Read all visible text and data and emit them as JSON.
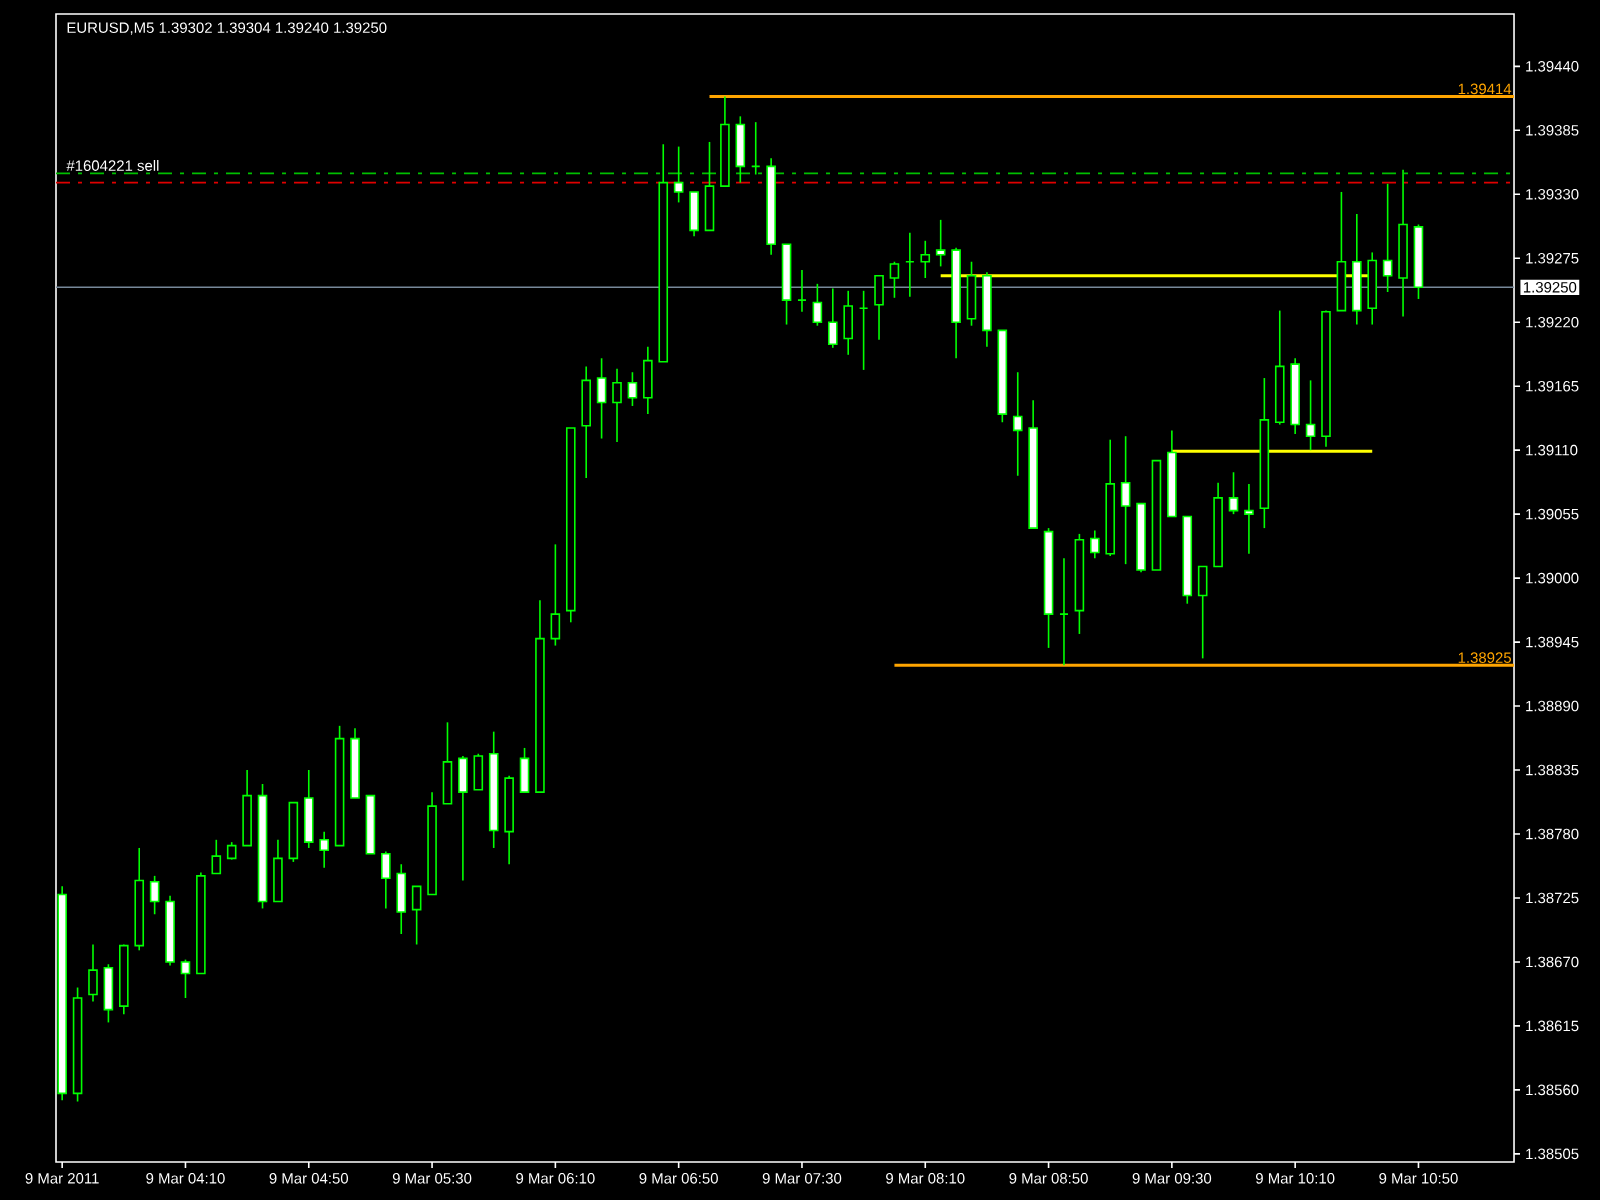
{
  "chart_data": {
    "type": "candlestick",
    "title": "EURUSD,M5  1.39302 1.39304 1.39240 1.39250",
    "x": [
      "2011-03-09T03:30",
      "2011-03-09T03:35",
      "2011-03-09T03:40",
      "2011-03-09T03:45",
      "2011-03-09T03:50",
      "2011-03-09T03:55",
      "2011-03-09T04:00",
      "2011-03-09T04:05",
      "2011-03-09T04:10",
      "2011-03-09T04:15",
      "2011-03-09T04:20",
      "2011-03-09T04:25",
      "2011-03-09T04:30",
      "2011-03-09T04:35",
      "2011-03-09T04:40",
      "2011-03-09T04:45",
      "2011-03-09T04:50",
      "2011-03-09T04:55",
      "2011-03-09T05:00",
      "2011-03-09T05:05",
      "2011-03-09T05:10",
      "2011-03-09T05:15",
      "2011-03-09T05:20",
      "2011-03-09T05:25",
      "2011-03-09T05:30",
      "2011-03-09T05:35",
      "2011-03-09T05:40",
      "2011-03-09T05:45",
      "2011-03-09T05:50",
      "2011-03-09T05:55",
      "2011-03-09T06:00",
      "2011-03-09T06:05",
      "2011-03-09T06:10",
      "2011-03-09T06:15",
      "2011-03-09T06:20",
      "2011-03-09T06:25",
      "2011-03-09T06:30",
      "2011-03-09T06:35",
      "2011-03-09T06:40",
      "2011-03-09T06:45",
      "2011-03-09T06:50",
      "2011-03-09T06:55",
      "2011-03-09T07:00",
      "2011-03-09T07:05",
      "2011-03-09T07:10",
      "2011-03-09T07:15",
      "2011-03-09T07:20",
      "2011-03-09T07:25",
      "2011-03-09T07:30",
      "2011-03-09T07:35",
      "2011-03-09T07:40",
      "2011-03-09T07:45",
      "2011-03-09T07:50",
      "2011-03-09T07:55",
      "2011-03-09T08:00",
      "2011-03-09T08:05",
      "2011-03-09T08:10",
      "2011-03-09T08:15",
      "2011-03-09T08:20",
      "2011-03-09T08:25",
      "2011-03-09T08:30",
      "2011-03-09T08:35",
      "2011-03-09T08:40",
      "2011-03-09T08:45",
      "2011-03-09T08:50",
      "2011-03-09T08:55",
      "2011-03-09T09:00",
      "2011-03-09T09:05",
      "2011-03-09T09:10",
      "2011-03-09T09:15",
      "2011-03-09T09:20",
      "2011-03-09T09:25",
      "2011-03-09T09:30",
      "2011-03-09T09:35",
      "2011-03-09T09:40",
      "2011-03-09T09:45",
      "2011-03-09T09:50",
      "2011-03-09T09:55",
      "2011-03-09T10:00",
      "2011-03-09T10:05",
      "2011-03-09T10:10",
      "2011-03-09T10:15",
      "2011-03-09T10:20",
      "2011-03-09T10:25",
      "2011-03-09T10:30",
      "2011-03-09T10:35",
      "2011-03-09T10:40",
      "2011-03-09T10:45",
      "2011-03-09T10:50"
    ],
    "ohlc": [
      [
        1.38728,
        1.38735,
        1.38551,
        1.38557
      ],
      [
        1.38557,
        1.38648,
        1.3855,
        1.38639
      ],
      [
        1.38642,
        1.38685,
        1.38636,
        1.38663
      ],
      [
        1.38665,
        1.38668,
        1.38618,
        1.38629
      ],
      [
        1.38632,
        1.38685,
        1.38625,
        1.38684
      ],
      [
        1.38684,
        1.38768,
        1.3868,
        1.3874
      ],
      [
        1.38739,
        1.38744,
        1.38711,
        1.38722
      ],
      [
        1.38722,
        1.38727,
        1.38667,
        1.3867
      ],
      [
        1.3867,
        1.38672,
        1.38639,
        1.3866
      ],
      [
        1.3866,
        1.38747,
        1.3866,
        1.38744
      ],
      [
        1.38746,
        1.38775,
        1.38746,
        1.38761
      ],
      [
        1.38759,
        1.38773,
        1.38758,
        1.3877
      ],
      [
        1.3877,
        1.38835,
        1.3877,
        1.38813
      ],
      [
        1.38813,
        1.38823,
        1.38716,
        1.38722
      ],
      [
        1.38722,
        1.38775,
        1.38722,
        1.38759
      ],
      [
        1.38759,
        1.38807,
        1.38756,
        1.38807
      ],
      [
        1.38811,
        1.38835,
        1.38768,
        1.38773
      ],
      [
        1.38775,
        1.38782,
        1.38751,
        1.38766
      ],
      [
        1.3877,
        1.38873,
        1.3877,
        1.38862
      ],
      [
        1.38862,
        1.38871,
        1.38811,
        1.38811
      ],
      [
        1.38813,
        1.38813,
        1.38763,
        1.38763
      ],
      [
        1.38763,
        1.38765,
        1.38716,
        1.38742
      ],
      [
        1.38746,
        1.38754,
        1.38694,
        1.38713
      ],
      [
        1.38715,
        1.38735,
        1.38685,
        1.38735
      ],
      [
        1.38728,
        1.38816,
        1.38728,
        1.38804
      ],
      [
        1.38806,
        1.38876,
        1.38806,
        1.38842
      ],
      [
        1.38845,
        1.38847,
        1.3874,
        1.38816
      ],
      [
        1.38818,
        1.38849,
        1.38818,
        1.38847
      ],
      [
        1.38849,
        1.38868,
        1.38768,
        1.38783
      ],
      [
        1.38782,
        1.3883,
        1.38754,
        1.38828
      ],
      [
        1.38845,
        1.38854,
        1.38816,
        1.38816
      ],
      [
        1.38816,
        1.38981,
        1.38816,
        1.38948
      ],
      [
        1.38948,
        1.39029,
        1.38942,
        1.38969
      ],
      [
        1.38972,
        1.39129,
        1.38962,
        1.39129
      ],
      [
        1.39131,
        1.39182,
        1.39086,
        1.3917
      ],
      [
        1.39172,
        1.39189,
        1.3912,
        1.39151
      ],
      [
        1.39151,
        1.3918,
        1.39117,
        1.39168
      ],
      [
        1.39168,
        1.39177,
        1.39148,
        1.39155
      ],
      [
        1.39155,
        1.39199,
        1.39141,
        1.39187
      ],
      [
        1.39186,
        1.39373,
        1.39186,
        1.3934
      ],
      [
        1.3934,
        1.39371,
        1.39323,
        1.39332
      ],
      [
        1.39332,
        1.39332,
        1.39294,
        1.39299
      ],
      [
        1.39299,
        1.39375,
        1.39299,
        1.39337
      ],
      [
        1.39337,
        1.39414,
        1.39337,
        1.3939
      ],
      [
        1.3939,
        1.39397,
        1.3934,
        1.39354
      ],
      [
        1.39354,
        1.39392,
        1.39347,
        1.39354
      ],
      [
        1.39354,
        1.39361,
        1.39278,
        1.39287
      ],
      [
        1.39287,
        1.39287,
        1.39218,
        1.39239
      ],
      [
        1.39239,
        1.39265,
        1.39229,
        1.39239
      ],
      [
        1.39237,
        1.39253,
        1.39217,
        1.3922
      ],
      [
        1.3922,
        1.39249,
        1.39198,
        1.39201
      ],
      [
        1.39206,
        1.39247,
        1.39192,
        1.39234
      ],
      [
        1.39232,
        1.39247,
        1.39179,
        1.39232
      ],
      [
        1.39235,
        1.3926,
        1.39205,
        1.3926
      ],
      [
        1.39258,
        1.39272,
        1.39241,
        1.3927
      ],
      [
        1.39272,
        1.39297,
        1.39242,
        1.39272
      ],
      [
        1.39272,
        1.3929,
        1.39258,
        1.39278
      ],
      [
        1.39282,
        1.39308,
        1.39268,
        1.39278
      ],
      [
        1.39282,
        1.39284,
        1.39189,
        1.3922
      ],
      [
        1.39223,
        1.39272,
        1.39217,
        1.3926
      ],
      [
        1.3926,
        1.39263,
        1.39199,
        1.39213
      ],
      [
        1.39213,
        1.39213,
        1.39134,
        1.39141
      ],
      [
        1.39139,
        1.39177,
        1.39088,
        1.39127
      ],
      [
        1.39129,
        1.39153,
        1.39043,
        1.39043
      ],
      [
        1.3904,
        1.39043,
        1.3894,
        1.38969
      ],
      [
        1.38969,
        1.39017,
        1.38925,
        1.38969
      ],
      [
        1.38972,
        1.39038,
        1.38952,
        1.39033
      ],
      [
        1.39034,
        1.39041,
        1.39017,
        1.39022
      ],
      [
        1.39021,
        1.39119,
        1.39019,
        1.39081
      ],
      [
        1.39082,
        1.39122,
        1.39012,
        1.39062
      ],
      [
        1.39064,
        1.39064,
        1.39005,
        1.39007
      ],
      [
        1.39007,
        1.39101,
        1.39007,
        1.39101
      ],
      [
        1.39108,
        1.39127,
        1.39053,
        1.39053
      ],
      [
        1.39053,
        1.39053,
        1.38978,
        1.38985
      ],
      [
        1.38985,
        1.3901,
        1.38931,
        1.3901
      ],
      [
        1.3901,
        1.39082,
        1.3901,
        1.39069
      ],
      [
        1.39069,
        1.39091,
        1.39055,
        1.39058
      ],
      [
        1.39058,
        1.39081,
        1.39021,
        1.39055
      ],
      [
        1.3906,
        1.39172,
        1.39043,
        1.39136
      ],
      [
        1.39134,
        1.3923,
        1.39132,
        1.39182
      ],
      [
        1.39184,
        1.39189,
        1.39124,
        1.39132
      ],
      [
        1.39132,
        1.3917,
        1.3911,
        1.39122
      ],
      [
        1.39122,
        1.3923,
        1.39113,
        1.39229
      ],
      [
        1.3923,
        1.39332,
        1.3923,
        1.39272
      ],
      [
        1.39272,
        1.39313,
        1.39218,
        1.3923
      ],
      [
        1.39232,
        1.3928,
        1.39218,
        1.39273
      ],
      [
        1.39273,
        1.39339,
        1.39246,
        1.3926
      ],
      [
        1.39258,
        1.39351,
        1.39225,
        1.39304
      ],
      [
        1.39302,
        1.39304,
        1.3924,
        1.3925
      ]
    ],
    "series": [
      {
        "type": "line",
        "x": [
          "2011-03-09T07:00",
          "2011-03-09T11:21"
        ],
        "values": [
          1.39414,
          1.39414
        ],
        "color": "#ffa500",
        "value_labels": [
          null,
          "1.39414"
        ]
      },
      {
        "type": "line",
        "x": [
          "2011-03-09T08:00",
          "2011-03-09T11:21"
        ],
        "values": [
          1.38925,
          1.38925
        ],
        "color": "#ffa500",
        "value_labels": [
          null,
          "1.38925"
        ]
      },
      {
        "type": "line",
        "x": [
          "2011-03-09T08:15",
          "2011-03-09T10:35"
        ],
        "values": [
          1.3926,
          1.3926
        ],
        "color": "#ffff00"
      },
      {
        "type": "line",
        "x": [
          "2011-03-09T09:30",
          "2011-03-09T10:35"
        ],
        "values": [
          1.39109,
          1.39109
        ],
        "color": "#ffff00"
      }
    ],
    "ref_lines": [
      {
        "axis": "y",
        "value": 1.39348,
        "label": "#1604221 sell",
        "color": "#00c000",
        "line_style": "dashed"
      },
      {
        "axis": "y",
        "value": 1.3934,
        "color": "#e00000",
        "line_style": "dashed"
      },
      {
        "axis": "y",
        "value": 1.3925,
        "label": "1.39250",
        "color": "#778899",
        "line_style": "solid"
      }
    ],
    "xlim": [
      "2011-03-09T03:28",
      "2011-03-09T11:21"
    ],
    "ylim": [
      1.38498,
      1.39485
    ],
    "xticks": [
      {
        "value": "2011-03-09T03:30",
        "label": "9 Mar 2011"
      },
      {
        "value": "2011-03-09T04:10",
        "label": "9 Mar 04:10"
      },
      {
        "value": "2011-03-09T04:50",
        "label": "9 Mar 04:50"
      },
      {
        "value": "2011-03-09T05:30",
        "label": "9 Mar 05:30"
      },
      {
        "value": "2011-03-09T06:10",
        "label": "9 Mar 06:10"
      },
      {
        "value": "2011-03-09T06:50",
        "label": "9 Mar 06:50"
      },
      {
        "value": "2011-03-09T07:30",
        "label": "9 Mar 07:30"
      },
      {
        "value": "2011-03-09T08:10",
        "label": "9 Mar 08:10"
      },
      {
        "value": "2011-03-09T08:50",
        "label": "9 Mar 08:50"
      },
      {
        "value": "2011-03-09T09:30",
        "label": "9 Mar 09:30"
      },
      {
        "value": "2011-03-09T10:10",
        "label": "9 Mar 10:10"
      },
      {
        "value": "2011-03-09T10:50",
        "label": "9 Mar 10:50"
      }
    ],
    "yticks": [
      {
        "value": 1.38505,
        "label": "1.38505"
      },
      {
        "value": 1.3856,
        "label": "1.38560"
      },
      {
        "value": 1.38615,
        "label": "1.38615"
      },
      {
        "value": 1.3867,
        "label": "1.38670"
      },
      {
        "value": 1.38725,
        "label": "1.38725"
      },
      {
        "value": 1.3878,
        "label": "1.38780"
      },
      {
        "value": 1.38835,
        "label": "1.38835"
      },
      {
        "value": 1.3889,
        "label": "1.38890"
      },
      {
        "value": 1.38945,
        "label": "1.38945"
      },
      {
        "value": 1.39,
        "label": "1.39000"
      },
      {
        "value": 1.39055,
        "label": "1.39055"
      },
      {
        "value": 1.3911,
        "label": "1.39110"
      },
      {
        "value": 1.39165,
        "label": "1.39165"
      },
      {
        "value": 1.3922,
        "label": "1.39220"
      },
      {
        "value": 1.39275,
        "label": "1.39275"
      },
      {
        "value": 1.3933,
        "label": "1.39330"
      },
      {
        "value": 1.39385,
        "label": "1.39385"
      },
      {
        "value": 1.3944,
        "label": "1.39440"
      }
    ]
  }
}
